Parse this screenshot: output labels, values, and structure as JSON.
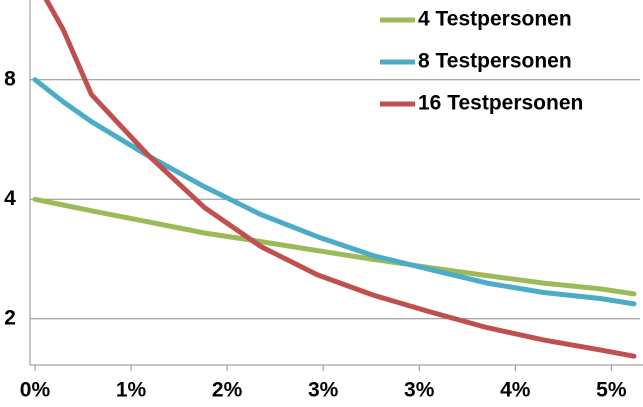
{
  "chart_data": {
    "type": "line",
    "y_scale": "log",
    "grid": true,
    "legend": "top-right",
    "x": [
      0,
      0.25,
      0.5,
      1,
      1.5,
      2,
      2.5,
      3,
      3.5,
      4,
      4.5,
      5,
      5.3
    ],
    "xlim": [
      -0.044,
      5.38
    ],
    "xticks": [
      {
        "value": 0,
        "label": "0%"
      },
      {
        "value": 0.85,
        "label": "1%"
      },
      {
        "value": 1.7,
        "label": "2%"
      },
      {
        "value": 2.55,
        "label": "3%"
      },
      {
        "value": 3.4,
        "label": "3%"
      },
      {
        "value": 4.25,
        "label": "4%"
      },
      {
        "value": 5.1,
        "label": "5%"
      }
    ],
    "ylim": [
      1.53,
      12.7
    ],
    "yticks": [
      2,
      4,
      8
    ],
    "series": [
      {
        "name": "4 Testpersonen",
        "color": "#9bbb59",
        "values": [
          4,
          3.87,
          3.74,
          3.51,
          3.29,
          3.13,
          2.97,
          2.82,
          2.69,
          2.57,
          2.46,
          2.38,
          2.31
        ]
      },
      {
        "name": "8 Testpersonen",
        "color": "#4bacc6",
        "values": [
          8,
          7.04,
          6.27,
          5.15,
          4.3,
          3.66,
          3.22,
          2.88,
          2.66,
          2.46,
          2.33,
          2.25,
          2.18
        ]
      },
      {
        "name": "16 Testpersonen",
        "color": "#c0504d",
        "values": [
          14.3,
          10.7,
          7.34,
          5.17,
          3.81,
          3.04,
          2.58,
          2.29,
          2.08,
          1.9,
          1.77,
          1.67,
          1.61
        ]
      }
    ]
  }
}
